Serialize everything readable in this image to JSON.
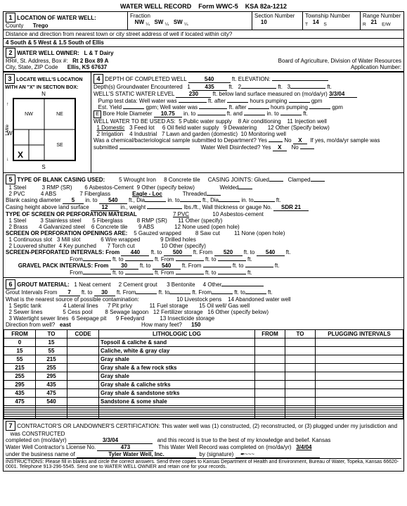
{
  "form": {
    "title": "WATER WELL RECORD",
    "formNo": "Form WWC-5",
    "ksa": "KSA 82a-1212"
  },
  "sec1": {
    "label": "LOCATION OF WATER WELL:",
    "county": "Trego",
    "fraction": "Fraction",
    "f1": "NW",
    "f2": "SW",
    "f3": "SW",
    "sectionNo": "10",
    "township": "14",
    "range": "21",
    "ew": "E/W",
    "dist": "Distance and direction from nearest town or city street address of well if located within city?",
    "addr": "4 South & 5 West & 1.5 South of Ellis"
  },
  "sec2": {
    "label": "WATER WELL OWNER:",
    "name": "L & T Dairy",
    "line1": "RR#, St. Address, Box #:",
    "addr1": "Rt 2 Box 89 A",
    "line2": "City, State, ZIP Code",
    "addr2": "Ellis, KS 67637",
    "board": "Board of Agriculture, Division of Water Resources",
    "app": "Application Number:"
  },
  "sec3": {
    "label": "LOCATE WELL'S LOCATION WITH AN \"X\" IN SECTION BOX:"
  },
  "sec4": {
    "depth": "540",
    "elev": "ft. ELEVATION:",
    "gw": "Depth(s) Groundwater Encountered",
    "gw1": "1",
    "gw1v": "435",
    "gw2": "2",
    "gw3": "3",
    "swl": "WELL'S STATIC WATER LEVEL",
    "swlv": "230",
    "swltxt": "ft. below land surface measured on (mo/da/yr)",
    "swldate": "3/3/04",
    "pump": "Pump test data:  Well water was",
    "after1": "ft. after",
    "hours1": "hours pumping",
    "gpm1": "gpm",
    "est": "Est. Yield",
    "gpm2": "gpm;   Well water was",
    "after2": "ft. after",
    "hours2": "hours pumping",
    "gpm3": "gpm",
    "bore": "Bore Hole Diameter",
    "borev": "10.75",
    "in": "in. to",
    "ft": "ft. and",
    "in2": "in. to",
    "ft2": "ft.",
    "use": "WELL WATER TO BE USED AS:",
    "u1": "1 Domestic",
    "u3": "3 Feed lot",
    "u5": "5 Public water supply",
    "u8": "8 Air conditioning",
    "u11": "11 Injection well",
    "u2": "2 Irrigation",
    "u4": "4 Industrial",
    "u6": "6 Oil field water supply",
    "u9": "9 Dewatering",
    "u12": "12 Other (Specify below)",
    "u7": "7 Lawn and garden (domestic)",
    "u10": "10 Monitoring well",
    "chem": "Was a chemical/bacteriological sample submitted to Department? Yes",
    "no": "No",
    "nov": "X",
    "if": "If yes, mo/da/yr sample was",
    "sub": "submitted",
    "disinfect": "Water Well Disinfected?  Yes",
    "dv": "X",
    "dno": "No"
  },
  "sec5": {
    "label": "TYPE OF BLANK CASING USED:",
    "c5": "5 Wrought Iron",
    "c8": "8 Concrete tile",
    "joint": "CASING JOINTS:  Glued",
    "clamped": "Clamped",
    "c1": "1 Steel",
    "c3": "3 RMP (SR)",
    "c6": "6 Asbestos-Cement",
    "c9": "9 Other (specify below)",
    "weld": "Welded",
    "c2": "2 PVC",
    "c4": "4 ABS",
    "c7": "7 Fiberglass",
    "eagle": "Eagle - Loc",
    "thr": "Threaded",
    "bcd": "Blank casing diameter",
    "bcd1": "5",
    "into": "in. to",
    "bcd2": "540",
    "ft1": "ft.,",
    "dia": "Dia",
    "into2": "in. to",
    "ft2": "ft.,",
    "dia2": "Dia",
    "into3": "in. to",
    "ft3": "ft.",
    "cht": "Casing height above land surface",
    "chtv": "12",
    "wt": "in., weight",
    "lbs": "lbs./ft., Wall thickness or gauge No.",
    "sdr": "SDR 21",
    "scr": "TYPE OF SCREEN OR PERFORATION MATERIAL",
    "s7": "7 PVC",
    "s10": "10 Asbestos-cement",
    "s1": "1 Steel",
    "s3": "3 Stainless steel",
    "s5": "5 Fiberglass",
    "s8": "8 RMP (SR)",
    "s11": "11 Other (specify)",
    "s2": "2 Brass",
    "s4": "4 Galvanized steel",
    "s6": "6 Concrete tile",
    "s9": "9 ABS",
    "s12": "12 None used (open hole)",
    "open": "SCREEN OR PERFORATION OPENINGS ARE:",
    "o5": "5 Gauzed wrapped",
    "o8": "8 Saw cut",
    "o11": "11 None (open hole)",
    "o1": "1 Continuous slot",
    "o3": "3 Mill slot",
    "o6": "6 Wire wrapped",
    "o9": "9 Drilled holes",
    "o2": "2 Louvered shutter",
    "o4": "4 Key punched",
    "o7": "7 Torch cut",
    "o10": "10 Other (specify)",
    "spi": "SCREEN-PERFORATED INTERVALS:  From",
    "spi1": "440",
    "to1": "ft. to",
    "spi2": "500",
    "from2": "ft. From",
    "spi3": "520",
    "to2": "ft. to",
    "spi4": "540",
    "ft4": "ft.",
    "gpi": "GRAVEL PACK INTERVALS:  From",
    "gpi1": "30",
    "gpto1": "ft. to",
    "gpi2": "540"
  },
  "sec6": {
    "label": "GROUT MATERIAL:",
    "g1": "1 Neat cement",
    "g2": "2 Cement grout",
    "g3": "3 Bentonite",
    "g4": "4 Other",
    "gi": "Grout Intervals    From",
    "giv1": "7",
    "to": "ft. to",
    "giv2": "30",
    "from": "ft. From",
    "to2": "ft. to",
    "from2": "ft. From",
    "to3": "ft. to",
    "ft": "ft.",
    "src": "What is the nearest source of possible contamination:",
    "s10": "10 Livestock pens",
    "s14": "14 Abandoned water well",
    "s1": "1 Septic tank",
    "s4": "4 Lateral lines",
    "s7": "7 Pit privy",
    "s11": "11 Fuel storage",
    "s15": "15 Oil well/ Gas well",
    "s2": "2 Sewer lines",
    "s5": "5 Cess pool",
    "s8": "8 Sewage lagoon",
    "s12": "12 Fertilizer storage",
    "s16": "16 Other (specify below)",
    "s3": "3 Watertight sewer lines",
    "s6": "6 Seepage pit",
    "s9": "9 Feedyard",
    "s13": "13 Insecticide storage",
    "dir": "Direction from well?",
    "dirv": "east",
    "feet": "How many feet?",
    "feetv": "150"
  },
  "litho": {
    "h1": "FROM",
    "h2": "TO",
    "h3": "CODE",
    "h4": "LITHOLOGIC LOG",
    "h5": "FROM",
    "h6": "TO",
    "h7": "PLUGGING INTERVALS",
    "rows": [
      {
        "f": "0",
        "t": "15",
        "d": "Topsoil & caliche & sand"
      },
      {
        "f": "15",
        "t": "55",
        "d": "Caliche, white & gray clay"
      },
      {
        "f": "55",
        "t": "215",
        "d": "Gray shale"
      },
      {
        "f": "215",
        "t": "255",
        "d": "Gray shale & a few rock stks"
      },
      {
        "f": "255",
        "t": "295",
        "d": "Gray shale"
      },
      {
        "f": "295",
        "t": "435",
        "d": "Gray shale & caliche strks"
      },
      {
        "f": "435",
        "t": "475",
        "d": "Gray shale & sandstone strks"
      },
      {
        "f": "475",
        "t": "540",
        "d": "Sandstone & some shale"
      }
    ]
  },
  "sec7": {
    "cert": "CONTRACTOR'S OR LANDOWNER'S CERTIFICATION:  This water well was (1) constructed, (2) reconstructed, or (3) plugged under my jurisdiction and",
    "was": "was   CONSTRUCTED",
    "comp": "completed on (mo/da/yr)",
    "date1": "3/3/04",
    "true": "and this record is true to the best of my knowledge and belief. Kansas",
    "lic": "Water Well Contractor's License No.",
    "licno": "473",
    "rcd": "This Water Well Record was completed on (mo/da/yr)",
    "date2": "3/4/04",
    "biz": "under the business name of",
    "bizn": "Tyler Water Well, Inc.",
    "by": "by (signature)",
    "instr": "INSTRUCTIONS:  Please fill in blanks and circle the correct answers.  Send three copies to Kansas Department of Health and Environment, Bureau of Water, Topeka, Kansas 66620-0001.  Telephone  913-296-5545.  Send one to WATER WELL OWNER and retain one for your records."
  }
}
